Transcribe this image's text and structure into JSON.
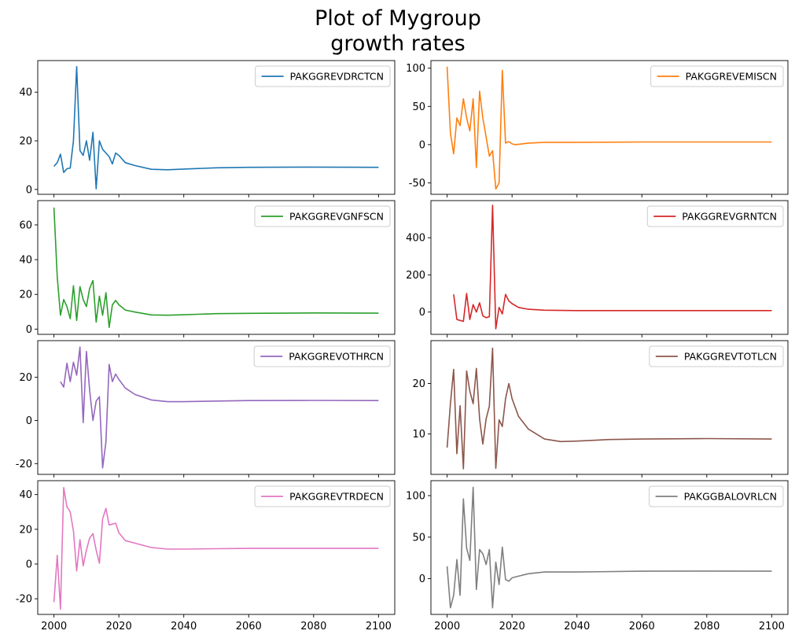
{
  "title_lines": [
    "Plot of Mygroup",
    "growth rates"
  ],
  "xlim": [
    1995,
    2105
  ],
  "xticks": [
    2000,
    2020,
    2040,
    2060,
    2080,
    2100
  ],
  "chart_data": [
    {
      "type": "line",
      "name": "PAKGGREVDRCTCN",
      "color": "#1f77b4",
      "ylim": [
        -2,
        53
      ],
      "yticks": [
        0,
        20,
        40
      ],
      "points": [
        [
          2000,
          9.5
        ],
        [
          2001,
          11
        ],
        [
          2002,
          14.5
        ],
        [
          2003,
          7
        ],
        [
          2004,
          8.5
        ],
        [
          2005,
          8.8
        ],
        [
          2006,
          20
        ],
        [
          2007,
          50.5
        ],
        [
          2008,
          16
        ],
        [
          2009,
          14
        ],
        [
          2010,
          20
        ],
        [
          2011,
          12
        ],
        [
          2012,
          23.5
        ],
        [
          2013,
          0.3
        ],
        [
          2014,
          20
        ],
        [
          2015,
          16.5
        ],
        [
          2016,
          15
        ],
        [
          2017,
          13.5
        ],
        [
          2018,
          10.5
        ],
        [
          2019,
          15
        ],
        [
          2020,
          14
        ],
        [
          2022,
          11
        ],
        [
          2025,
          9.8
        ],
        [
          2030,
          8.3
        ],
        [
          2035,
          8.1
        ],
        [
          2040,
          8.4
        ],
        [
          2050,
          8.9
        ],
        [
          2060,
          9.1
        ],
        [
          2080,
          9.2
        ],
        [
          2100,
          9.1
        ]
      ]
    },
    {
      "type": "line",
      "name": "PAKGGREVEMISCN",
      "color": "#ff7f0e",
      "ylim": [
        -65,
        110
      ],
      "yticks": [
        -50,
        0,
        50,
        100
      ],
      "points": [
        [
          2000,
          102
        ],
        [
          2001,
          15
        ],
        [
          2002,
          -12
        ],
        [
          2003,
          35
        ],
        [
          2004,
          25
        ],
        [
          2005,
          60
        ],
        [
          2006,
          35
        ],
        [
          2007,
          18
        ],
        [
          2008,
          60
        ],
        [
          2009,
          -30
        ],
        [
          2010,
          70
        ],
        [
          2011,
          35
        ],
        [
          2012,
          10
        ],
        [
          2013,
          -15
        ],
        [
          2014,
          -8
        ],
        [
          2015,
          -58
        ],
        [
          2016,
          -50
        ],
        [
          2017,
          97
        ],
        [
          2018,
          2
        ],
        [
          2019,
          4
        ],
        [
          2020,
          1
        ],
        [
          2021,
          0
        ],
        [
          2023,
          1
        ],
        [
          2025,
          2
        ],
        [
          2030,
          3
        ],
        [
          2040,
          3
        ],
        [
          2060,
          3.5
        ],
        [
          2080,
          3.5
        ],
        [
          2100,
          3.5
        ]
      ]
    },
    {
      "type": "line",
      "name": "PAKGGREVGNFSCN",
      "color": "#2ca02c",
      "ylim": [
        -3,
        74
      ],
      "yticks": [
        0,
        20,
        40,
        60
      ],
      "points": [
        [
          2000,
          70
        ],
        [
          2001,
          30
        ],
        [
          2002,
          8
        ],
        [
          2003,
          17
        ],
        [
          2004,
          13
        ],
        [
          2005,
          6
        ],
        [
          2006,
          25
        ],
        [
          2007,
          5
        ],
        [
          2008,
          24.5
        ],
        [
          2009,
          17
        ],
        [
          2010,
          13
        ],
        [
          2011,
          23.5
        ],
        [
          2012,
          28
        ],
        [
          2013,
          4
        ],
        [
          2014,
          19
        ],
        [
          2015,
          8
        ],
        [
          2016,
          21
        ],
        [
          2017,
          1
        ],
        [
          2018,
          14
        ],
        [
          2019,
          16.5
        ],
        [
          2020,
          14
        ],
        [
          2022,
          11
        ],
        [
          2025,
          9.8
        ],
        [
          2030,
          8.2
        ],
        [
          2035,
          8
        ],
        [
          2040,
          8.3
        ],
        [
          2050,
          8.9
        ],
        [
          2060,
          9.1
        ],
        [
          2080,
          9.3
        ],
        [
          2100,
          9.2
        ]
      ]
    },
    {
      "type": "line",
      "name": "PAKGGREVGRNTCN",
      "color": "#d62728",
      "ylim": [
        -120,
        600
      ],
      "yticks": [
        0,
        200,
        400
      ],
      "points": [
        [
          2002,
          95
        ],
        [
          2003,
          -40
        ],
        [
          2004,
          -45
        ],
        [
          2005,
          -50
        ],
        [
          2006,
          100
        ],
        [
          2007,
          -40
        ],
        [
          2008,
          40
        ],
        [
          2009,
          0
        ],
        [
          2010,
          50
        ],
        [
          2011,
          -20
        ],
        [
          2012,
          -30
        ],
        [
          2013,
          -25
        ],
        [
          2014,
          575
        ],
        [
          2015,
          -90
        ],
        [
          2016,
          25
        ],
        [
          2017,
          -10
        ],
        [
          2018,
          95
        ],
        [
          2019,
          60
        ],
        [
          2020,
          45
        ],
        [
          2022,
          25
        ],
        [
          2025,
          15
        ],
        [
          2030,
          10
        ],
        [
          2040,
          8
        ],
        [
          2060,
          8
        ],
        [
          2080,
          8
        ],
        [
          2100,
          8
        ]
      ]
    },
    {
      "type": "line",
      "name": "PAKGGREVOTHRCN",
      "color": "#9467bd",
      "ylim": [
        -25,
        37
      ],
      "yticks": [
        -20,
        0,
        20
      ],
      "points": [
        [
          2002,
          18
        ],
        [
          2003,
          15.5
        ],
        [
          2004,
          26.5
        ],
        [
          2005,
          18
        ],
        [
          2006,
          27
        ],
        [
          2007,
          21
        ],
        [
          2008,
          34
        ],
        [
          2009,
          -1
        ],
        [
          2010,
          32
        ],
        [
          2011,
          14
        ],
        [
          2012,
          0
        ],
        [
          2013,
          9
        ],
        [
          2014,
          11
        ],
        [
          2015,
          -22
        ],
        [
          2016,
          -10
        ],
        [
          2017,
          26
        ],
        [
          2018,
          18
        ],
        [
          2019,
          21.5
        ],
        [
          2020,
          19
        ],
        [
          2022,
          15
        ],
        [
          2025,
          12
        ],
        [
          2030,
          9.5
        ],
        [
          2035,
          8.7
        ],
        [
          2040,
          8.7
        ],
        [
          2050,
          9
        ],
        [
          2060,
          9.2
        ],
        [
          2080,
          9.3
        ],
        [
          2100,
          9.2
        ]
      ]
    },
    {
      "type": "line",
      "name": "PAKGGREVTOTLCN",
      "color": "#8c564b",
      "ylim": [
        2,
        28.5
      ],
      "yticks": [
        10,
        20
      ],
      "points": [
        [
          2000,
          7.3
        ],
        [
          2001,
          16
        ],
        [
          2002,
          22.8
        ],
        [
          2003,
          6.1
        ],
        [
          2004,
          15.6
        ],
        [
          2005,
          3.1
        ],
        [
          2006,
          22.5
        ],
        [
          2007,
          18.5
        ],
        [
          2008,
          16
        ],
        [
          2009,
          23
        ],
        [
          2010,
          13
        ],
        [
          2011,
          8
        ],
        [
          2012,
          13
        ],
        [
          2013,
          15.5
        ],
        [
          2014,
          27
        ],
        [
          2015,
          3.2
        ],
        [
          2016,
          12.8
        ],
        [
          2017,
          11.5
        ],
        [
          2018,
          17
        ],
        [
          2019,
          20
        ],
        [
          2020,
          17
        ],
        [
          2022,
          13.5
        ],
        [
          2025,
          11
        ],
        [
          2030,
          9
        ],
        [
          2035,
          8.5
        ],
        [
          2040,
          8.6
        ],
        [
          2050,
          8.9
        ],
        [
          2060,
          9
        ],
        [
          2080,
          9.1
        ],
        [
          2100,
          9
        ]
      ]
    },
    {
      "type": "line",
      "name": "PAKGGREVTRDECN",
      "color": "#e377c2",
      "ylim": [
        -29,
        48
      ],
      "yticks": [
        -20,
        0,
        20,
        40
      ],
      "points": [
        [
          2000,
          -22
        ],
        [
          2001,
          5
        ],
        [
          2002,
          -26
        ],
        [
          2003,
          44
        ],
        [
          2004,
          33
        ],
        [
          2005,
          30
        ],
        [
          2006,
          19
        ],
        [
          2007,
          -4
        ],
        [
          2008,
          14
        ],
        [
          2009,
          -1
        ],
        [
          2010,
          8
        ],
        [
          2011,
          15
        ],
        [
          2012,
          17.5
        ],
        [
          2013,
          8
        ],
        [
          2014,
          0.5
        ],
        [
          2015,
          26
        ],
        [
          2016,
          32
        ],
        [
          2017,
          22.5
        ],
        [
          2018,
          23
        ],
        [
          2019,
          23.5
        ],
        [
          2020,
          18
        ],
        [
          2022,
          13.5
        ],
        [
          2025,
          12
        ],
        [
          2030,
          9.5
        ],
        [
          2035,
          8.6
        ],
        [
          2040,
          8.6
        ],
        [
          2050,
          8.8
        ],
        [
          2060,
          9
        ],
        [
          2080,
          9
        ],
        [
          2100,
          9
        ]
      ]
    },
    {
      "type": "line",
      "name": "PAKGGBALOVRLCN",
      "color": "#7f7f7f",
      "ylim": [
        -43,
        118
      ],
      "yticks": [
        0,
        50,
        100
      ],
      "points": [
        [
          2000,
          15
        ],
        [
          2001,
          -35
        ],
        [
          2002,
          -20
        ],
        [
          2003,
          23
        ],
        [
          2004,
          -20
        ],
        [
          2005,
          96
        ],
        [
          2006,
          37
        ],
        [
          2007,
          22
        ],
        [
          2008,
          110
        ],
        [
          2009,
          -13
        ],
        [
          2010,
          35
        ],
        [
          2011,
          30
        ],
        [
          2012,
          17
        ],
        [
          2013,
          35
        ],
        [
          2014,
          -35
        ],
        [
          2015,
          20
        ],
        [
          2016,
          -7
        ],
        [
          2017,
          38
        ],
        [
          2018,
          -1
        ],
        [
          2019,
          -3
        ],
        [
          2020,
          1
        ],
        [
          2022,
          3
        ],
        [
          2025,
          6
        ],
        [
          2030,
          8
        ],
        [
          2040,
          8
        ],
        [
          2060,
          9
        ],
        [
          2080,
          9.2
        ],
        [
          2100,
          9
        ]
      ]
    }
  ]
}
